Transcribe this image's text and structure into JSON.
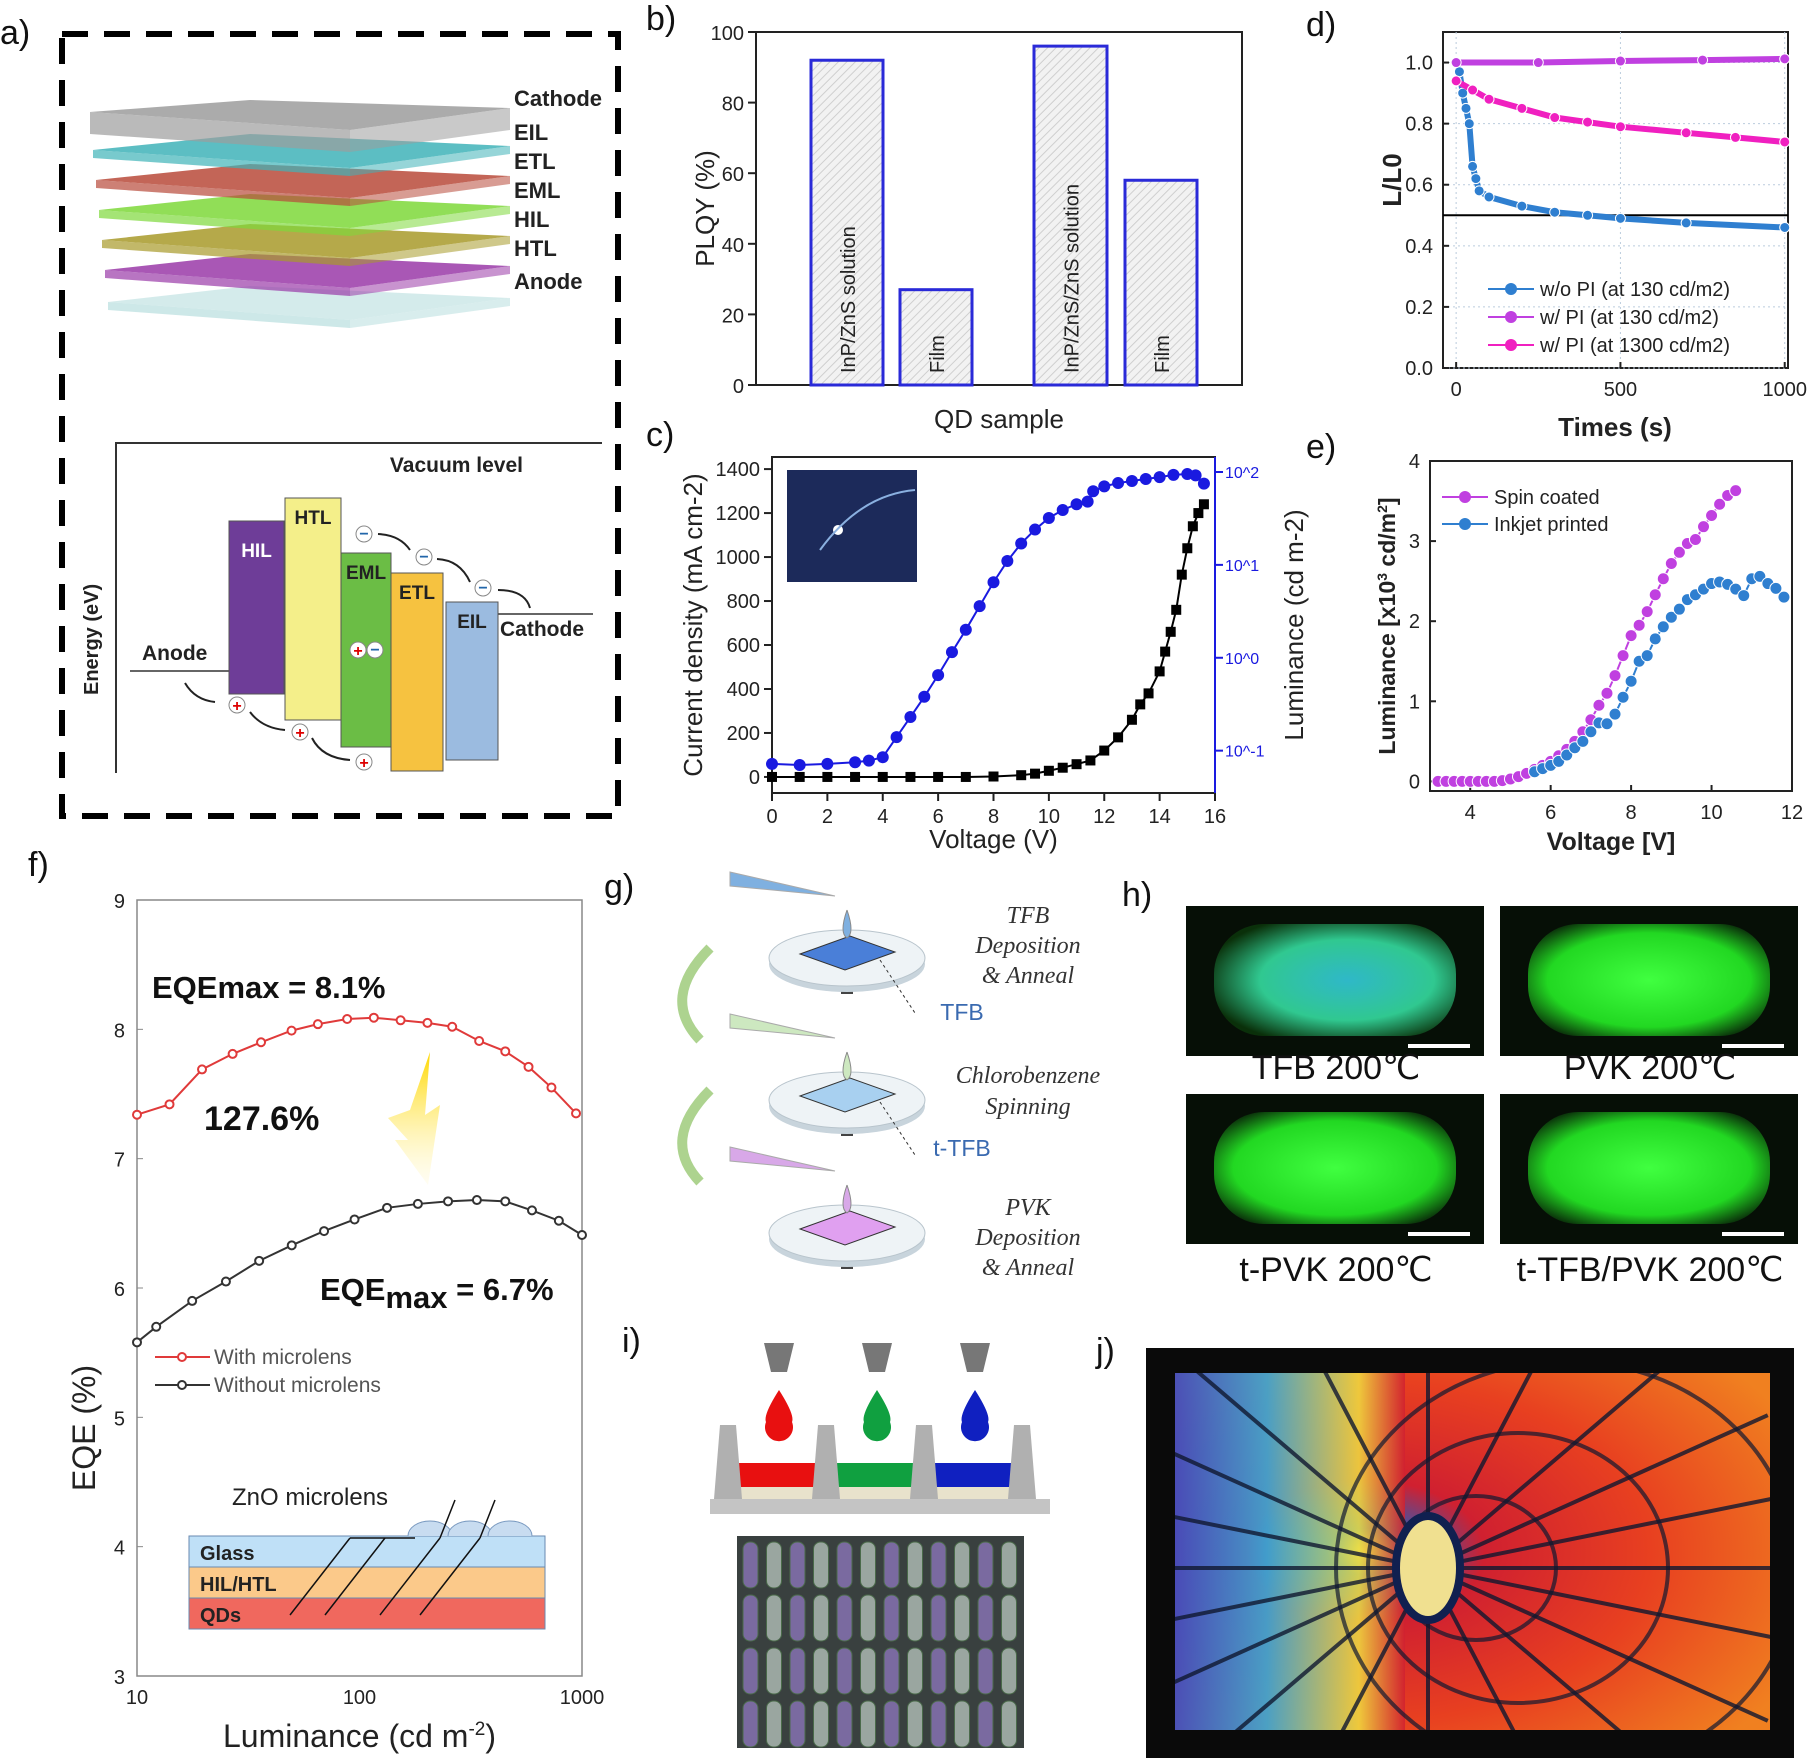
{
  "panel_labels": {
    "a": "a)",
    "b": "b)",
    "c": "c)",
    "d": "d)",
    "e": "e)",
    "f": "f)",
    "g": "g)",
    "h": "h)",
    "i": "i)",
    "j": "j)"
  },
  "panel_a": {
    "stack_labels": [
      "Cathode",
      "EIL",
      "ETL",
      "EML",
      "HIL",
      "HTL",
      "Anode"
    ],
    "stack_colors": [
      "#9c9c9c",
      "#3fb3b8",
      "#b84a3a",
      "#7ed83a",
      "#a89a2a",
      "#9a3aa8",
      "#b8dede"
    ],
    "energy_axis": "Energy (eV)",
    "vacuum_level": "Vacuum level",
    "anode": "Anode",
    "cathode": "Cathode",
    "bands": [
      {
        "label": "HIL",
        "color": "#6e3d98"
      },
      {
        "label": "HTL",
        "color": "#f4ef8a"
      },
      {
        "label": "EML",
        "color": "#6bbd45"
      },
      {
        "label": "ETL",
        "color": "#f6c240"
      },
      {
        "label": "EIL",
        "color": "#9bbbe0"
      }
    ]
  },
  "chart_data": [
    {
      "panel": "b",
      "type": "bar",
      "categories": [
        "InP/ZnS solution",
        "Film",
        "InP/ZnS/ZnS solution",
        "Film"
      ],
      "values": [
        92,
        27,
        96,
        58
      ],
      "xlabel": "QD sample",
      "ylabel": "PLQY (%)",
      "ylim": [
        0,
        100
      ],
      "yticks": [
        0,
        20,
        40,
        60,
        80,
        100
      ],
      "bar_edge_color": "#2a2ad8",
      "grid": false
    },
    {
      "panel": "c",
      "type": "scatter",
      "xlabel": "Voltage (V)",
      "ylabel": "Current density (mA cm-2)",
      "ylabel_right": "Luminance (cd m-2)",
      "xlim": [
        0,
        16
      ],
      "xticks": [
        0,
        2,
        4,
        6,
        8,
        10,
        12,
        14,
        16
      ],
      "ylim": [
        -73,
        1455
      ],
      "yticks": [
        0,
        200,
        400,
        600,
        800,
        1000,
        1200,
        1400
      ],
      "ylim_right_log": [
        0.035,
        145
      ],
      "yticks_right": [
        "10^-1",
        "10^0",
        "10^1",
        "10^2"
      ],
      "right_axis_color": "#1a1ae0",
      "series": [
        {
          "axis": "left",
          "color": "#000000",
          "marker": "square",
          "points": [
            [
              0,
              0
            ],
            [
              1,
              0
            ],
            [
              2,
              0
            ],
            [
              3,
              0
            ],
            [
              4,
              0
            ],
            [
              5,
              0
            ],
            [
              6,
              0
            ],
            [
              7,
              0
            ],
            [
              8,
              2
            ],
            [
              9,
              8
            ],
            [
              9.5,
              15
            ],
            [
              10,
              28
            ],
            [
              10.5,
              42
            ],
            [
              11,
              58
            ],
            [
              11.5,
              75
            ],
            [
              12,
              120
            ],
            [
              12.5,
              180
            ],
            [
              13,
              260
            ],
            [
              13.3,
              330
            ],
            [
              13.6,
              380
            ],
            [
              14,
              480
            ],
            [
              14.2,
              570
            ],
            [
              14.4,
              660
            ],
            [
              14.6,
              760
            ],
            [
              14.8,
              920
            ],
            [
              15,
              1040
            ],
            [
              15.2,
              1140
            ],
            [
              15.4,
              1200
            ],
            [
              15.6,
              1240
            ]
          ]
        },
        {
          "axis": "right",
          "color": "#1a1ae0",
          "marker": "circle",
          "points": [
            [
              0,
              0.072
            ],
            [
              1,
              0.07
            ],
            [
              2,
              0.072
            ],
            [
              3,
              0.075
            ],
            [
              3.5,
              0.078
            ],
            [
              4,
              0.085
            ],
            [
              4.5,
              0.14
            ],
            [
              5,
              0.23
            ],
            [
              5.5,
              0.38
            ],
            [
              6,
              0.65
            ],
            [
              6.5,
              1.15
            ],
            [
              7,
              2.0
            ],
            [
              7.5,
              3.6
            ],
            [
              8,
              6.5
            ],
            [
              8.5,
              11
            ],
            [
              9,
              17
            ],
            [
              9.5,
              24
            ],
            [
              10,
              32
            ],
            [
              10.5,
              39
            ],
            [
              11,
              45
            ],
            [
              11.4,
              48
            ],
            [
              11.6,
              62
            ],
            [
              12,
              70
            ],
            [
              12.5,
              76
            ],
            [
              13,
              80
            ],
            [
              13.5,
              84
            ],
            [
              14,
              88
            ],
            [
              14.5,
              93
            ],
            [
              15,
              95
            ],
            [
              15.3,
              92
            ],
            [
              15.6,
              75
            ]
          ]
        }
      ]
    },
    {
      "panel": "d",
      "type": "line",
      "xlabel": "Times (s)",
      "ylabel": "L/L0",
      "xlim": [
        -40,
        1010
      ],
      "xticks": [
        0,
        500,
        1000
      ],
      "ylim": [
        0,
        1.1
      ],
      "yticks": [
        0.0,
        0.2,
        0.4,
        0.6,
        0.8,
        1.0
      ],
      "ytick_labels": [
        "0.0",
        "0.2",
        "0.4",
        "0.6",
        "0.8",
        "1.0"
      ],
      "grid": true,
      "reference_line_y": 0.5,
      "legend_position": "bottom-right",
      "series": [
        {
          "name": "w/o PI (at 130 cd/m2)",
          "color": "#2f7fd0",
          "points": [
            [
              0,
              1.0
            ],
            [
              10,
              0.97
            ],
            [
              20,
              0.9
            ],
            [
              30,
              0.85
            ],
            [
              40,
              0.8
            ],
            [
              50,
              0.66
            ],
            [
              60,
              0.62
            ],
            [
              70,
              0.58
            ],
            [
              100,
              0.56
            ],
            [
              200,
              0.53
            ],
            [
              300,
              0.51
            ],
            [
              400,
              0.5
            ],
            [
              500,
              0.49
            ],
            [
              700,
              0.475
            ],
            [
              1000,
              0.46
            ]
          ]
        },
        {
          "name": "w/   PI (at 130 cd/m2)",
          "color": "#c040e0",
          "points": [
            [
              0,
              1.0
            ],
            [
              250,
              1.0
            ],
            [
              500,
              1.005
            ],
            [
              750,
              1.008
            ],
            [
              1000,
              1.012
            ]
          ]
        },
        {
          "name": "w/   PI (at 1300 cd/m2)",
          "color": "#f020c0",
          "points": [
            [
              0,
              0.94
            ],
            [
              50,
              0.91
            ],
            [
              100,
              0.88
            ],
            [
              200,
              0.85
            ],
            [
              300,
              0.82
            ],
            [
              400,
              0.805
            ],
            [
              500,
              0.79
            ],
            [
              700,
              0.77
            ],
            [
              850,
              0.755
            ],
            [
              1000,
              0.74
            ]
          ]
        }
      ]
    },
    {
      "panel": "e",
      "type": "line",
      "xlabel": "Voltage [V]",
      "ylabel": "Luminance [x10^3 cd/m^2]",
      "xlim": [
        3,
        12
      ],
      "xticks": [
        4,
        6,
        8,
        10,
        12
      ],
      "ylim": [
        -0.12,
        4
      ],
      "yticks": [
        0,
        1,
        2,
        3,
        4
      ],
      "legend_position": "top-left",
      "series": [
        {
          "name": "Spin coated",
          "color": "#c040e0",
          "points": [
            [
              3.2,
              0
            ],
            [
              3.4,
              0
            ],
            [
              3.6,
              0
            ],
            [
              3.8,
              0
            ],
            [
              4,
              0
            ],
            [
              4.2,
              0
            ],
            [
              4.4,
              0
            ],
            [
              4.6,
              0
            ],
            [
              4.8,
              0.01
            ],
            [
              5,
              0.03
            ],
            [
              5.2,
              0.06
            ],
            [
              5.4,
              0.1
            ],
            [
              5.6,
              0.15
            ],
            [
              5.8,
              0.2
            ],
            [
              6,
              0.25
            ],
            [
              6.2,
              0.32
            ],
            [
              6.4,
              0.4
            ],
            [
              6.6,
              0.5
            ],
            [
              6.8,
              0.62
            ],
            [
              7,
              0.77
            ],
            [
              7.2,
              0.95
            ],
            [
              7.4,
              1.1
            ],
            [
              7.6,
              1.32
            ],
            [
              7.8,
              1.57
            ],
            [
              8,
              1.82
            ],
            [
              8.2,
              1.95
            ],
            [
              8.4,
              2.12
            ],
            [
              8.6,
              2.33
            ],
            [
              8.8,
              2.53
            ],
            [
              9,
              2.72
            ],
            [
              9.2,
              2.86
            ],
            [
              9.4,
              2.97
            ],
            [
              9.6,
              3.02
            ],
            [
              9.8,
              3.18
            ],
            [
              10,
              3.32
            ],
            [
              10.2,
              3.46
            ],
            [
              10.4,
              3.57
            ],
            [
              10.6,
              3.63
            ]
          ]
        },
        {
          "name": "Inkjet printed",
          "color": "#2f7fd0",
          "points": [
            [
              5.6,
              0.12
            ],
            [
              5.8,
              0.16
            ],
            [
              6,
              0.2
            ],
            [
              6.2,
              0.25
            ],
            [
              6.4,
              0.33
            ],
            [
              6.6,
              0.42
            ],
            [
              6.8,
              0.5
            ],
            [
              7,
              0.62
            ],
            [
              7.2,
              0.73
            ],
            [
              7.4,
              0.72
            ],
            [
              7.6,
              0.84
            ],
            [
              7.8,
              1.05
            ],
            [
              8,
              1.25
            ],
            [
              8.2,
              1.5
            ],
            [
              8.4,
              1.57
            ],
            [
              8.6,
              1.78
            ],
            [
              8.8,
              1.93
            ],
            [
              9,
              2.05
            ],
            [
              9.2,
              2.15
            ],
            [
              9.4,
              2.27
            ],
            [
              9.6,
              2.33
            ],
            [
              9.8,
              2.4
            ],
            [
              10,
              2.47
            ],
            [
              10.2,
              2.49
            ],
            [
              10.4,
              2.46
            ],
            [
              10.6,
              2.4
            ],
            [
              10.8,
              2.32
            ],
            [
              11,
              2.53
            ],
            [
              11.2,
              2.56
            ],
            [
              11.4,
              2.47
            ],
            [
              11.6,
              2.41
            ],
            [
              11.8,
              2.3
            ]
          ]
        }
      ]
    },
    {
      "panel": "f",
      "type": "line",
      "xlabel": "Luminance (cd m-2)",
      "ylabel": "EQE (%)",
      "xscale": "log",
      "xlim": [
        10,
        1000
      ],
      "xticks": [
        10,
        100,
        1000
      ],
      "ylim": [
        3,
        9
      ],
      "yticks": [
        3,
        4,
        5,
        6,
        7,
        8,
        9
      ],
      "legend_position": "middle-left",
      "annotations": [
        "EQEmax = 8.1%",
        "127.6%",
        "EQEmax = 6.7%"
      ],
      "inset": {
        "title": "ZnO microlens",
        "layers": [
          "Glass",
          "HIL/HTL",
          "QDs"
        ],
        "layer_colors": [
          "#bfe0f7",
          "#fbc98a",
          "#f0685e"
        ]
      },
      "series": [
        {
          "name": "With      microlens",
          "color": "#e03a3a",
          "points": [
            [
              10,
              7.34
            ],
            [
              14,
              7.42
            ],
            [
              19.6,
              7.69
            ],
            [
              26.9,
              7.81
            ],
            [
              36.1,
              7.9
            ],
            [
              49.5,
              7.99
            ],
            [
              65,
              8.04
            ],
            [
              88,
              8.08
            ],
            [
              116,
              8.09
            ],
            [
              153,
              8.07
            ],
            [
              202,
              8.05
            ],
            [
              261,
              8.02
            ],
            [
              345,
              7.91
            ],
            [
              452,
              7.83
            ],
            [
              575,
              7.71
            ],
            [
              729,
              7.55
            ],
            [
              940,
              7.35
            ]
          ]
        },
        {
          "name": "Without microlens",
          "color": "#333333",
          "points": [
            [
              10,
              5.58
            ],
            [
              12.2,
              5.7
            ],
            [
              17.7,
              5.9
            ],
            [
              25.1,
              6.05
            ],
            [
              35.4,
              6.21
            ],
            [
              49.6,
              6.33
            ],
            [
              69.3,
              6.44
            ],
            [
              95,
              6.53
            ],
            [
              133,
              6.62
            ],
            [
              183,
              6.65
            ],
            [
              250,
              6.67
            ],
            [
              337,
              6.68
            ],
            [
              452,
              6.67
            ],
            [
              596,
              6.6
            ],
            [
              787,
              6.52
            ],
            [
              1000,
              6.41
            ]
          ]
        }
      ]
    }
  ],
  "panel_g": {
    "steps": [
      {
        "lines": [
          "TFB",
          "Deposition",
          "& Anneal"
        ],
        "layer_label": "TFB",
        "film_color": "#4a7fd8",
        "tip_color": "#7fb0e0"
      },
      {
        "lines": [
          "Chlorobenzene",
          "Spinning"
        ],
        "layer_label": "t-TFB",
        "film_color": "#a8d0f0",
        "tip_color": "#cde8c0"
      },
      {
        "lines": [
          "PVK",
          "Deposition",
          "& Anneal"
        ],
        "layer_label": "",
        "film_color": "#e0a0f0",
        "tip_color": "#d8a8e8"
      }
    ]
  },
  "panel_h": {
    "images": [
      {
        "label": "TFB 200℃",
        "tint": "#2fbfa0"
      },
      {
        "label": "PVK 200℃",
        "tint": "#2ee02e"
      },
      {
        "label": "t-PVK 200℃",
        "tint": "#2ee02e"
      },
      {
        "label": "t-TFB/PVK 200℃",
        "tint": "#2ee02e"
      }
    ]
  },
  "panel_i": {
    "ink_colors": [
      "#e81010",
      "#10a040",
      "#1020c0"
    ]
  },
  "panel_j": {}
}
